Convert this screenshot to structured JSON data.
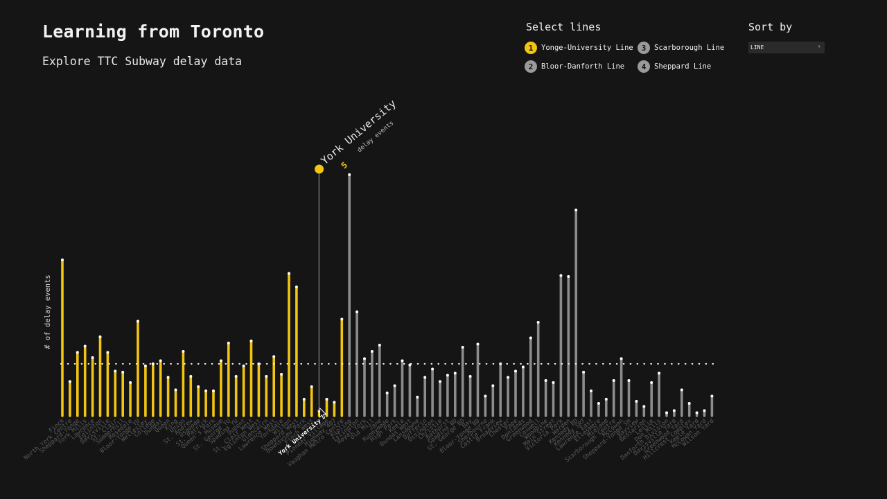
{
  "header": {
    "title": "Learning from Toronto",
    "subtitle": "Explore TTC Subway delay data"
  },
  "controls": {
    "lines_heading": "Select lines",
    "sort_heading": "Sort by",
    "sort_value": "LINE",
    "lines": [
      {
        "num": "1",
        "label": "Yonge-University Line",
        "color": "#f2c511",
        "active": true
      },
      {
        "num": "2",
        "label": "Bloor-Danforth Line",
        "color": "#9a9a9a",
        "active": false
      },
      {
        "num": "3",
        "label": "Scarborough Line",
        "color": "#9a9a9a",
        "active": false
      },
      {
        "num": "4",
        "label": "Sheppard Line",
        "color": "#9a9a9a",
        "active": false
      }
    ]
  },
  "tooltip": {
    "station": "York University",
    "value": "5",
    "unit": "delay events"
  },
  "chart_data": {
    "type": "bar",
    "ylabel": "# of delay events",
    "ylim": [
      0,
      240
    ],
    "average_line": 50,
    "highlight_color": "#f2c511",
    "other_color": "#8c8c8c",
    "highlighted": "York University",
    "series": [
      {
        "name": "Yonge-University Line",
        "active": true,
        "categories": [
          "Finch",
          "North York Centre",
          "Sheppard-Yonge",
          "York Mills",
          "Lawrence",
          "Eglinton",
          "Davisville",
          "St. Clair",
          "Summerhill",
          "Rosedale",
          "Bloor-Yonge YU",
          "Wellesley",
          "College",
          "Dundas",
          "Queen",
          "King",
          "Union",
          "St. Andrew",
          "Osgoode",
          "St. Patrick",
          "Queen's Park",
          "Museum",
          "St. George YU",
          "Spadina YU",
          "Dupont",
          "St. Clair West",
          "Eglinton West",
          "Glencairn",
          "Lawrence West",
          "Yorkdale",
          "Wilson",
          "Sheppard West",
          "Downsview Park",
          "Finch West",
          "York University",
          "Pioneer Village",
          "Highway 407",
          "Vaughan Metro Centre"
        ],
        "values": [
          150,
          33,
          61,
          67,
          56,
          76,
          61,
          43,
          42,
          32,
          91,
          48,
          50,
          53,
          37,
          25,
          62,
          38,
          28,
          24,
          24,
          53,
          70,
          38,
          48,
          72,
          50,
          38,
          57,
          40,
          137,
          124,
          16,
          28,
          5,
          16,
          13,
          93
        ]
      },
      {
        "name": "Bloor-Danforth Line",
        "active": false,
        "categories": [
          "Kipling",
          "Islington",
          "Royal York",
          "Old Mill",
          "Jane",
          "Runnymede",
          "High Park",
          "Keele",
          "Dundas West",
          "Lansdowne",
          "Dufferin",
          "Ossington",
          "Christie",
          "Bathurst",
          "Spadina BD",
          "St. George BD",
          "Bay",
          "Bloor-Yonge BD",
          "Sherbourne",
          "Castle Frank",
          "Broadview",
          "Chester",
          "Pape",
          "Donlands",
          "Greenwood",
          "Coxwell",
          "Woodbine",
          "Main Street",
          "Victoria Park",
          "Warden",
          "Kennedy BD"
        ],
        "values": [
          232,
          100,
          55,
          62,
          68,
          22,
          29,
          53,
          49,
          18,
          37,
          45,
          33,
          39,
          41,
          66,
          38,
          69,
          19,
          29,
          50,
          37,
          43,
          47,
          75,
          90,
          34,
          32,
          135,
          134,
          198
        ]
      },
      {
        "name": "Scarborough Line",
        "active": false,
        "categories": [
          "Kennedy SRT",
          "Lawrence East",
          "Ellesmere",
          "Midland",
          "Scarborough Centre",
          "McCowan"
        ],
        "values": [
          42,
          24,
          12,
          16,
          34,
          55
        ]
      },
      {
        "name": "Sheppard Line",
        "active": false,
        "categories": [
          "Sheppard-Yonge SH",
          "Bayview",
          "Bessarion",
          "Leslie",
          "Don Mills"
        ],
        "values": [
          34,
          14,
          9,
          32,
          41
        ]
      },
      {
        "name": "Yards",
        "active": false,
        "categories": [
          "Danforth Division",
          "Davisville Yard",
          "Greenwood Yard",
          "Hillcrest Complex",
          "Keele Yard",
          "McCowan Yard",
          "Wilson Yard"
        ],
        "values": [
          3,
          5,
          25,
          12,
          3,
          5,
          19
        ]
      }
    ]
  }
}
